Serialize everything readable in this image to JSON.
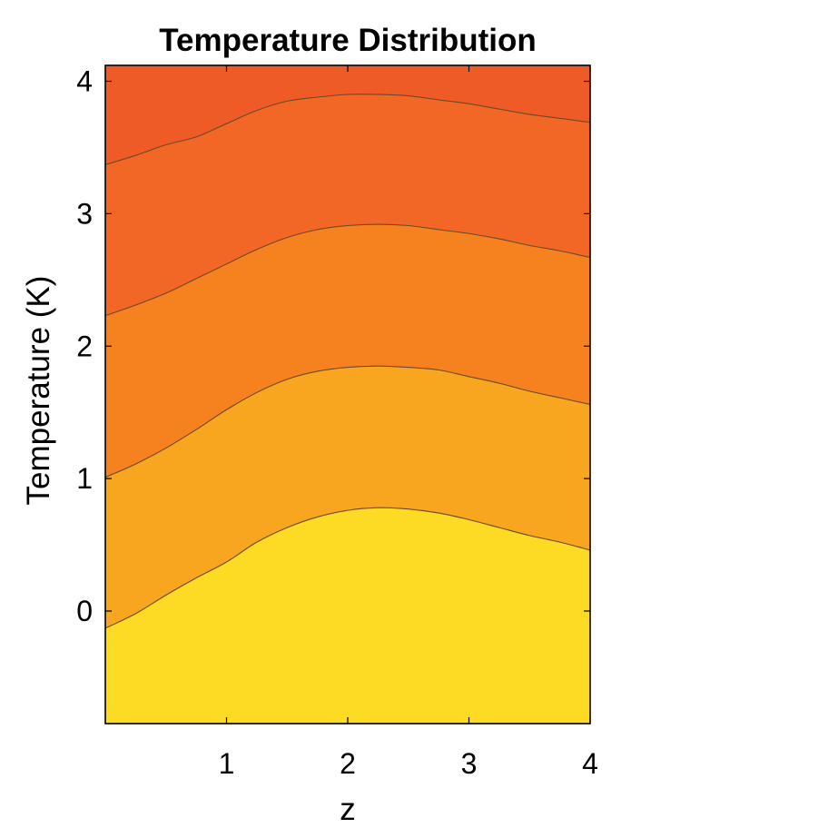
{
  "chart_data": {
    "type": "contour",
    "title": "Temperature Distribution",
    "xlabel": "z",
    "ylabel": "Temperature (K)",
    "xlim": [
      0,
      4
    ],
    "ylim": [
      -0.85,
      4.12
    ],
    "xticks": [
      "1",
      "2",
      "3",
      "4"
    ],
    "xtick_values": [
      1,
      2,
      3,
      4
    ],
    "yticks": [
      "0",
      "1",
      "2",
      "3",
      "4"
    ],
    "ytick_values": [
      0,
      1,
      2,
      3,
      4
    ],
    "grid": false,
    "colormap": [
      "#fdda24",
      "#f8a61f",
      "#f5821f",
      "#f26725",
      "#ef5b27"
    ],
    "contour_lines": [
      {
        "x": [
          0,
          0.25,
          0.5,
          0.75,
          1.0,
          1.25,
          1.5,
          1.75,
          2.0,
          2.25,
          2.5,
          2.75,
          3.0,
          3.25,
          3.5,
          3.75,
          4.0
        ],
        "y": [
          -0.13,
          -0.02,
          0.12,
          0.25,
          0.37,
          0.52,
          0.63,
          0.71,
          0.76,
          0.78,
          0.77,
          0.74,
          0.69,
          0.63,
          0.57,
          0.52,
          0.46
        ]
      },
      {
        "x": [
          0,
          0.25,
          0.5,
          0.75,
          1.0,
          1.25,
          1.5,
          1.75,
          2.0,
          2.25,
          2.5,
          2.75,
          3.0,
          3.25,
          3.5,
          3.75,
          4.0
        ],
        "y": [
          1.01,
          1.11,
          1.23,
          1.37,
          1.52,
          1.65,
          1.75,
          1.81,
          1.84,
          1.85,
          1.84,
          1.82,
          1.77,
          1.72,
          1.66,
          1.61,
          1.56
        ]
      },
      {
        "x": [
          0,
          0.25,
          0.5,
          0.75,
          1.0,
          1.25,
          1.5,
          1.75,
          2.0,
          2.25,
          2.5,
          2.75,
          3.0,
          3.25,
          3.5,
          3.75,
          4.0
        ],
        "y": [
          2.23,
          2.31,
          2.4,
          2.51,
          2.62,
          2.73,
          2.82,
          2.88,
          2.91,
          2.92,
          2.91,
          2.88,
          2.85,
          2.81,
          2.76,
          2.72,
          2.67
        ]
      },
      {
        "x": [
          0,
          0.25,
          0.5,
          0.75,
          1.0,
          1.25,
          1.5,
          1.75,
          2.0,
          2.25,
          2.5,
          2.75,
          3.0,
          3.25,
          3.5,
          3.75,
          4.0
        ],
        "y": [
          3.37,
          3.44,
          3.52,
          3.58,
          3.68,
          3.78,
          3.85,
          3.88,
          3.9,
          3.9,
          3.89,
          3.86,
          3.83,
          3.79,
          3.75,
          3.72,
          3.69
        ]
      }
    ]
  }
}
